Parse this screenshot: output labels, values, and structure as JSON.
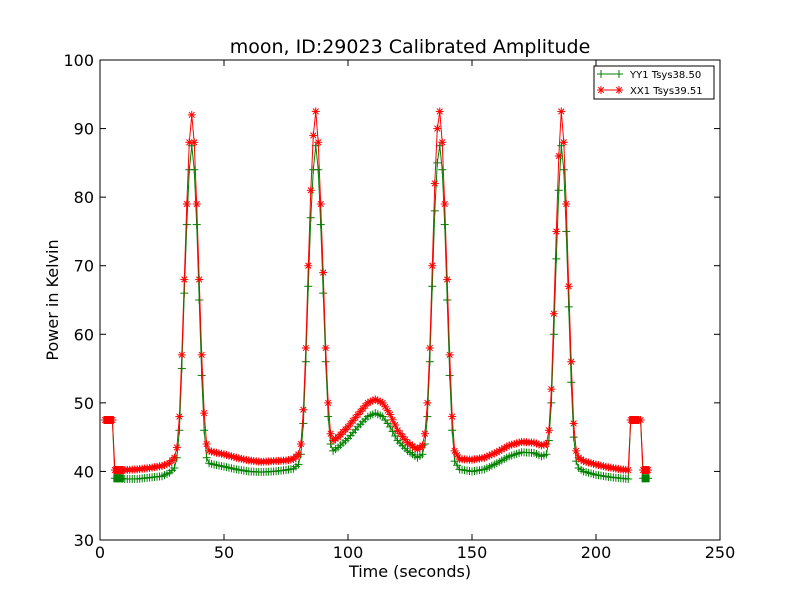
{
  "chart_data": {
    "type": "line",
    "title": "moon, ID:29023 Calibrated Amplitude",
    "xlabel": "Time (seconds)",
    "ylabel": "Power in Kelvin",
    "xlim": [
      0,
      250
    ],
    "ylim": [
      30,
      100
    ],
    "xticks": [
      "0",
      "50",
      "100",
      "150",
      "200",
      "250"
    ],
    "yticks": [
      "30",
      "40",
      "50",
      "60",
      "70",
      "80",
      "90",
      "100"
    ],
    "grid": false,
    "legend_position": "top-right",
    "series": [
      {
        "name": "YY1 Tsys38.50",
        "color": "#008000",
        "marker": "plus",
        "points": [
          [
            4,
            47.5
          ],
          [
            5,
            47.5
          ],
          [
            6,
            39
          ],
          [
            8,
            39
          ],
          [
            10,
            38.9
          ],
          [
            15,
            38.9
          ],
          [
            20,
            39.1
          ],
          [
            25,
            39.3
          ],
          [
            28,
            39.8
          ],
          [
            30,
            40.5
          ],
          [
            31,
            42
          ],
          [
            32,
            46
          ],
          [
            33,
            55
          ],
          [
            34,
            66
          ],
          [
            35,
            76
          ],
          [
            36,
            84
          ],
          [
            37,
            87.5
          ],
          [
            38,
            84
          ],
          [
            39,
            76
          ],
          [
            40,
            65
          ],
          [
            41,
            54
          ],
          [
            42,
            46
          ],
          [
            43,
            42
          ],
          [
            44,
            41.2
          ],
          [
            46,
            41
          ],
          [
            50,
            40.7
          ],
          [
            55,
            40.3
          ],
          [
            60,
            40
          ],
          [
            65,
            39.9
          ],
          [
            70,
            40
          ],
          [
            75,
            40.2
          ],
          [
            78,
            40.4
          ],
          [
            80,
            41
          ],
          [
            81,
            42.5
          ],
          [
            82,
            47
          ],
          [
            83,
            56
          ],
          [
            84,
            67
          ],
          [
            85,
            77
          ],
          [
            86,
            84
          ],
          [
            87,
            87.5
          ],
          [
            88,
            84
          ],
          [
            89,
            76
          ],
          [
            90,
            66
          ],
          [
            91,
            56
          ],
          [
            92,
            48
          ],
          [
            93,
            44
          ],
          [
            94,
            43
          ],
          [
            96,
            43.5
          ],
          [
            100,
            44.8
          ],
          [
            104,
            46.5
          ],
          [
            108,
            48
          ],
          [
            111,
            48.5
          ],
          [
            114,
            48
          ],
          [
            117,
            46.5
          ],
          [
            120,
            44.5
          ],
          [
            124,
            43
          ],
          [
            128,
            42
          ],
          [
            130,
            42.5
          ],
          [
            131,
            44
          ],
          [
            132,
            48
          ],
          [
            133,
            56
          ],
          [
            134,
            67
          ],
          [
            135,
            78
          ],
          [
            136,
            85
          ],
          [
            137,
            87.5
          ],
          [
            138,
            84
          ],
          [
            139,
            76
          ],
          [
            140,
            65
          ],
          [
            141,
            54
          ],
          [
            142,
            46
          ],
          [
            143,
            41.5
          ],
          [
            145,
            40.3
          ],
          [
            150,
            40
          ],
          [
            155,
            40.3
          ],
          [
            160,
            41.2
          ],
          [
            165,
            42.2
          ],
          [
            170,
            42.8
          ],
          [
            175,
            42.7
          ],
          [
            178,
            42.2
          ],
          [
            180,
            42.5
          ],
          [
            181,
            44.5
          ],
          [
            182,
            50
          ],
          [
            183,
            60
          ],
          [
            184,
            71
          ],
          [
            185,
            81
          ],
          [
            186,
            87.5
          ],
          [
            187,
            84
          ],
          [
            188,
            75
          ],
          [
            189,
            64
          ],
          [
            190,
            53
          ],
          [
            191,
            45
          ],
          [
            192,
            41.5
          ],
          [
            193,
            40.5
          ],
          [
            195,
            40
          ],
          [
            200,
            39.5
          ],
          [
            205,
            39.2
          ],
          [
            210,
            39
          ],
          [
            213,
            38.9
          ],
          [
            214,
            47.5
          ],
          [
            215,
            47.5
          ],
          [
            216,
            47.5
          ],
          [
            218,
            47.5
          ],
          [
            219,
            39
          ],
          [
            221,
            39
          ]
        ]
      },
      {
        "name": "XX1 Tsys39.51",
        "color": "#ff0000",
        "marker": "star",
        "points": [
          [
            2,
            47.5
          ],
          [
            3,
            47.5
          ],
          [
            4,
            47.5
          ],
          [
            5,
            47.5
          ],
          [
            6,
            40.2
          ],
          [
            8,
            40.2
          ],
          [
            10,
            40.2
          ],
          [
            15,
            40.3
          ],
          [
            20,
            40.5
          ],
          [
            25,
            40.8
          ],
          [
            28,
            41.2
          ],
          [
            30,
            42
          ],
          [
            31,
            43.5
          ],
          [
            32,
            48
          ],
          [
            33,
            57
          ],
          [
            34,
            68
          ],
          [
            35,
            79
          ],
          [
            36,
            88
          ],
          [
            37,
            92
          ],
          [
            38,
            88
          ],
          [
            39,
            79
          ],
          [
            40,
            68
          ],
          [
            41,
            57
          ],
          [
            42,
            48.5
          ],
          [
            43,
            44
          ],
          [
            44,
            43
          ],
          [
            46,
            42.8
          ],
          [
            50,
            42.5
          ],
          [
            55,
            42
          ],
          [
            60,
            41.6
          ],
          [
            65,
            41.4
          ],
          [
            70,
            41.5
          ],
          [
            75,
            41.6
          ],
          [
            78,
            41.8
          ],
          [
            80,
            42.5
          ],
          [
            81,
            44
          ],
          [
            82,
            49
          ],
          [
            83,
            58
          ],
          [
            84,
            70
          ],
          [
            85,
            81
          ],
          [
            86,
            89
          ],
          [
            87,
            92.5
          ],
          [
            88,
            88
          ],
          [
            89,
            79
          ],
          [
            90,
            69
          ],
          [
            91,
            58
          ],
          [
            92,
            50
          ],
          [
            93,
            45.5
          ],
          [
            94,
            44.5
          ],
          [
            96,
            45
          ],
          [
            100,
            46.5
          ],
          [
            104,
            48.3
          ],
          [
            108,
            50
          ],
          [
            111,
            50.5
          ],
          [
            114,
            50
          ],
          [
            117,
            48.3
          ],
          [
            120,
            46
          ],
          [
            124,
            44.2
          ],
          [
            128,
            43.2
          ],
          [
            130,
            43.8
          ],
          [
            131,
            45.5
          ],
          [
            132,
            50
          ],
          [
            133,
            58
          ],
          [
            134,
            70
          ],
          [
            135,
            82
          ],
          [
            136,
            90
          ],
          [
            137,
            92.5
          ],
          [
            138,
            88
          ],
          [
            139,
            79
          ],
          [
            140,
            68
          ],
          [
            141,
            57
          ],
          [
            142,
            48
          ],
          [
            143,
            43
          ],
          [
            145,
            41.8
          ],
          [
            150,
            41.7
          ],
          [
            155,
            42
          ],
          [
            160,
            42.8
          ],
          [
            165,
            43.8
          ],
          [
            170,
            44.3
          ],
          [
            175,
            44.2
          ],
          [
            178,
            43.8
          ],
          [
            180,
            44
          ],
          [
            181,
            46
          ],
          [
            182,
            52
          ],
          [
            183,
            63
          ],
          [
            184,
            75
          ],
          [
            185,
            86
          ],
          [
            186,
            92.5
          ],
          [
            187,
            88
          ],
          [
            188,
            79
          ],
          [
            189,
            67
          ],
          [
            190,
            56
          ],
          [
            191,
            47
          ],
          [
            192,
            43
          ],
          [
            193,
            42
          ],
          [
            195,
            41.5
          ],
          [
            200,
            41
          ],
          [
            205,
            40.6
          ],
          [
            210,
            40.3
          ],
          [
            213,
            40.2
          ],
          [
            214,
            47.5
          ],
          [
            215,
            47.5
          ],
          [
            216,
            47.5
          ],
          [
            218,
            47.5
          ],
          [
            219,
            40.2
          ],
          [
            221,
            40.2
          ]
        ]
      }
    ]
  }
}
